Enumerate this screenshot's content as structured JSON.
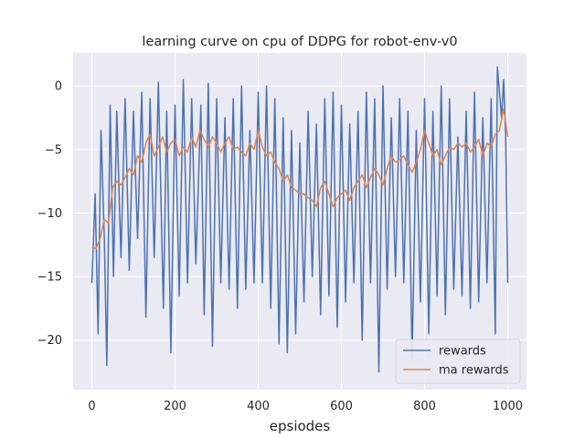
{
  "chart_data": {
    "type": "line",
    "title": "learning curve on cpu of DDPG for robot-env-v0",
    "xlabel": "epsiodes",
    "ylabel": "",
    "xlim": [
      -45,
      1045
    ],
    "ylim": [
      -23.9,
      2.6
    ],
    "xticks": [
      0,
      200,
      400,
      600,
      800,
      1000
    ],
    "yticks": [
      0,
      -5,
      -10,
      -15,
      -20
    ],
    "grid": true,
    "legend_position": "lower-right",
    "series": [
      {
        "name": "rewards",
        "color": "#4c72b0",
        "x": [
          0,
          8,
          15,
          22,
          30,
          36,
          44,
          52,
          60,
          70,
          80,
          90,
          100,
          110,
          120,
          130,
          140,
          150,
          160,
          172,
          180,
          190,
          200,
          210,
          220,
          230,
          240,
          250,
          262,
          270,
          280,
          290,
          300,
          310,
          320,
          330,
          340,
          350,
          360,
          370,
          380,
          390,
          400,
          410,
          420,
          430,
          440,
          450,
          460,
          470,
          480,
          490,
          500,
          510,
          520,
          530,
          540,
          550,
          560,
          570,
          580,
          590,
          600,
          610,
          620,
          630,
          640,
          650,
          660,
          670,
          680,
          690,
          700,
          710,
          720,
          730,
          740,
          750,
          760,
          770,
          780,
          790,
          800,
          810,
          820,
          830,
          840,
          850,
          860,
          870,
          880,
          890,
          900,
          910,
          920,
          930,
          940,
          950,
          960,
          970,
          975,
          985,
          990,
          995,
          1000
        ],
        "y": [
          -15.5,
          -8.5,
          -19.5,
          -3.5,
          -12,
          -22,
          -1.5,
          -15,
          -2,
          -13.5,
          -1,
          -14.5,
          -2,
          -12,
          -0.5,
          -18.2,
          -1,
          -13.5,
          0.3,
          -17.5,
          -2,
          -21,
          -1.5,
          -16.5,
          0.5,
          -15.5,
          -1,
          -14,
          -1.5,
          -18,
          0.2,
          -20.5,
          -1,
          -15.5,
          -2.5,
          -16,
          -1,
          -17.5,
          0,
          -16,
          -3.5,
          -15.5,
          -0.5,
          -15.5,
          0,
          -17.5,
          -1,
          -20.3,
          -2.5,
          -21,
          -3.5,
          -19.5,
          -4.5,
          -17,
          -2,
          -15,
          -3,
          -18,
          -1,
          -16.5,
          -0.5,
          -19,
          -1.5,
          -17,
          -3,
          -15.5,
          -2,
          -20,
          -0.5,
          -15.5,
          -1,
          -22.5,
          0,
          -16,
          -2.5,
          -15,
          -1,
          -15.5,
          -2,
          -21.5,
          -3.5,
          -17,
          -1,
          -19.5,
          -2,
          -16.5,
          0,
          -18,
          -1,
          -16,
          -4,
          -16.5,
          -2,
          -17.5,
          -0.5,
          -17,
          -2.5,
          -15.5,
          -1,
          -19.5,
          1.5,
          -2.5,
          0.5,
          -4,
          -15.5
        ]
      },
      {
        "name": "ma rewards",
        "color": "#dd8452",
        "x": [
          0,
          10,
          20,
          30,
          40,
          50,
          60,
          70,
          80,
          90,
          100,
          110,
          120,
          130,
          140,
          150,
          160,
          170,
          180,
          190,
          200,
          210,
          220,
          230,
          240,
          250,
          260,
          270,
          280,
          290,
          300,
          310,
          320,
          330,
          340,
          350,
          360,
          370,
          380,
          390,
          400,
          410,
          420,
          430,
          440,
          450,
          460,
          470,
          480,
          490,
          500,
          510,
          520,
          530,
          540,
          550,
          560,
          570,
          580,
          590,
          600,
          610,
          620,
          630,
          640,
          650,
          660,
          670,
          680,
          690,
          700,
          710,
          720,
          730,
          740,
          750,
          760,
          770,
          780,
          790,
          800,
          810,
          820,
          830,
          840,
          850,
          860,
          870,
          880,
          890,
          900,
          910,
          920,
          930,
          940,
          950,
          960,
          970,
          980,
          990,
          1000
        ],
        "y": [
          -12.7,
          -12.8,
          -12,
          -10.5,
          -10.8,
          -8,
          -7.5,
          -7.8,
          -7.2,
          -6.5,
          -7,
          -5.5,
          -6,
          -4.5,
          -3.8,
          -5.5,
          -4.8,
          -4,
          -5.2,
          -4.5,
          -4.2,
          -5.5,
          -4.8,
          -5.2,
          -4,
          -4.8,
          -3.5,
          -4.2,
          -4.8,
          -4,
          -4.5,
          -5.2,
          -4.5,
          -4,
          -5,
          -4.8,
          -5.2,
          -5.5,
          -4.5,
          -5,
          -3.5,
          -4.8,
          -5.5,
          -5.2,
          -6,
          -6.5,
          -7.5,
          -7,
          -8,
          -8.2,
          -8.5,
          -8.5,
          -8.8,
          -9,
          -9.5,
          -8,
          -7.5,
          -8.5,
          -9.5,
          -8.8,
          -8.5,
          -8.2,
          -9,
          -8,
          -7.5,
          -7,
          -8,
          -7.2,
          -6.5,
          -7,
          -7.8,
          -6.5,
          -5.5,
          -6,
          -5.8,
          -5.5,
          -6.2,
          -6.8,
          -6,
          -5,
          -3.5,
          -4.5,
          -5.5,
          -5,
          -6.2,
          -5.5,
          -4.8,
          -5,
          -4.5,
          -4.8,
          -4.5,
          -5.2,
          -4.8,
          -4.2,
          -5.5,
          -4.5,
          -4.8,
          -3.8,
          -3.5,
          -1.8,
          -4
        ]
      }
    ]
  }
}
